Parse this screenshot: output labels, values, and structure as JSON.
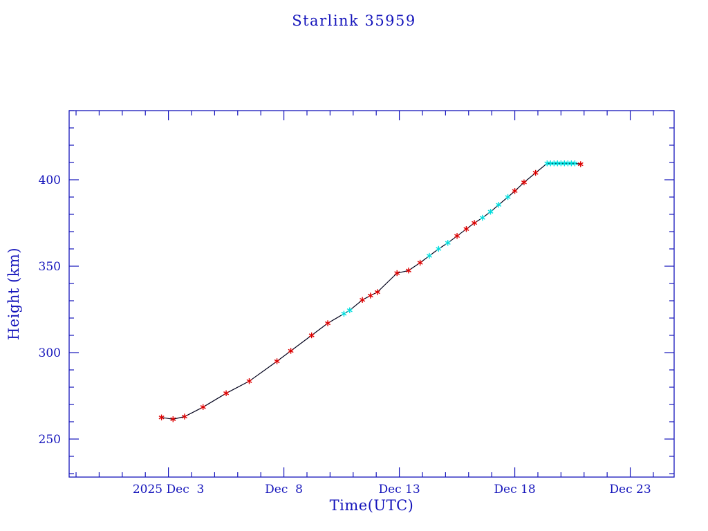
{
  "chart_data": {
    "type": "line",
    "title": "Starlink 35959",
    "xlabel": "Time(UTC)",
    "ylabel": "Height (km)",
    "x_axis_unit": "date (December 2025, day numbers)",
    "xlim_days": [
      -1.3,
      24.9
    ],
    "ylim_km": [
      228,
      440
    ],
    "x_ticks": [
      {
        "day": 3,
        "label": "2025 Dec  3"
      },
      {
        "day": 8,
        "label": "Dec  8"
      },
      {
        "day": 13,
        "label": "Dec 13"
      },
      {
        "day": 18,
        "label": "Dec 18"
      },
      {
        "day": 23,
        "label": "Dec 23"
      }
    ],
    "x_minor_tick_step_days": 1,
    "y_ticks": [
      {
        "km": 250,
        "label": "250"
      },
      {
        "km": 300,
        "label": "300"
      },
      {
        "km": 350,
        "label": "350"
      },
      {
        "km": 400,
        "label": "400"
      }
    ],
    "y_minor_tick_step_km": 10,
    "grid": false,
    "legend": "none",
    "colors": {
      "axis": "#1414bb",
      "text": "#1414bb",
      "line": "#00001a",
      "marker_red": "#dd0000",
      "marker_cyan": "#00dede"
    },
    "series": [
      {
        "name": "orbital-height-km",
        "points": [
          {
            "day": 2.7,
            "km": 262.5,
            "marker": "red"
          },
          {
            "day": 3.2,
            "km": 261.5,
            "marker": "red"
          },
          {
            "day": 3.7,
            "km": 263.0,
            "marker": "red"
          },
          {
            "day": 4.5,
            "km": 268.5,
            "marker": "red"
          },
          {
            "day": 5.5,
            "km": 276.5,
            "marker": "red"
          },
          {
            "day": 6.5,
            "km": 283.5,
            "marker": "red"
          },
          {
            "day": 7.7,
            "km": 295.0,
            "marker": "red"
          },
          {
            "day": 8.3,
            "km": 301.0,
            "marker": "red"
          },
          {
            "day": 9.2,
            "km": 310.0,
            "marker": "red"
          },
          {
            "day": 9.9,
            "km": 317.0,
            "marker": "red"
          },
          {
            "day": 10.6,
            "km": 322.5,
            "marker": "cyan"
          },
          {
            "day": 10.85,
            "km": 324.5,
            "marker": "cyan"
          },
          {
            "day": 11.4,
            "km": 330.5,
            "marker": "red"
          },
          {
            "day": 11.75,
            "km": 333.0,
            "marker": "red"
          },
          {
            "day": 12.05,
            "km": 335.0,
            "marker": "red"
          },
          {
            "day": 12.9,
            "km": 346.0,
            "marker": "red"
          },
          {
            "day": 13.4,
            "km": 347.5,
            "marker": "red"
          },
          {
            "day": 13.9,
            "km": 352.0,
            "marker": "red"
          },
          {
            "day": 14.3,
            "km": 356.0,
            "marker": "cyan"
          },
          {
            "day": 14.7,
            "km": 360.0,
            "marker": "cyan"
          },
          {
            "day": 15.1,
            "km": 363.5,
            "marker": "cyan"
          },
          {
            "day": 15.5,
            "km": 367.5,
            "marker": "red"
          },
          {
            "day": 15.9,
            "km": 371.5,
            "marker": "red"
          },
          {
            "day": 16.25,
            "km": 375.0,
            "marker": "red"
          },
          {
            "day": 16.6,
            "km": 378.0,
            "marker": "cyan"
          },
          {
            "day": 16.95,
            "km": 381.5,
            "marker": "cyan"
          },
          {
            "day": 17.3,
            "km": 385.5,
            "marker": "cyan"
          },
          {
            "day": 17.7,
            "km": 390.0,
            "marker": "cyan"
          },
          {
            "day": 18.0,
            "km": 393.5,
            "marker": "red"
          },
          {
            "day": 18.4,
            "km": 398.5,
            "marker": "red"
          },
          {
            "day": 18.9,
            "km": 404.0,
            "marker": "red"
          },
          {
            "day": 19.4,
            "km": 409.5,
            "marker": "cyan"
          },
          {
            "day": 19.55,
            "km": 409.5,
            "marker": "cyan"
          },
          {
            "day": 19.7,
            "km": 409.5,
            "marker": "cyan"
          },
          {
            "day": 19.85,
            "km": 409.5,
            "marker": "cyan"
          },
          {
            "day": 20.0,
            "km": 409.5,
            "marker": "cyan"
          },
          {
            "day": 20.15,
            "km": 409.5,
            "marker": "cyan"
          },
          {
            "day": 20.3,
            "km": 409.5,
            "marker": "cyan"
          },
          {
            "day": 20.45,
            "km": 409.5,
            "marker": "cyan"
          },
          {
            "day": 20.6,
            "km": 409.5,
            "marker": "cyan"
          },
          {
            "day": 20.85,
            "km": 409.0,
            "marker": "red"
          }
        ]
      }
    ]
  }
}
